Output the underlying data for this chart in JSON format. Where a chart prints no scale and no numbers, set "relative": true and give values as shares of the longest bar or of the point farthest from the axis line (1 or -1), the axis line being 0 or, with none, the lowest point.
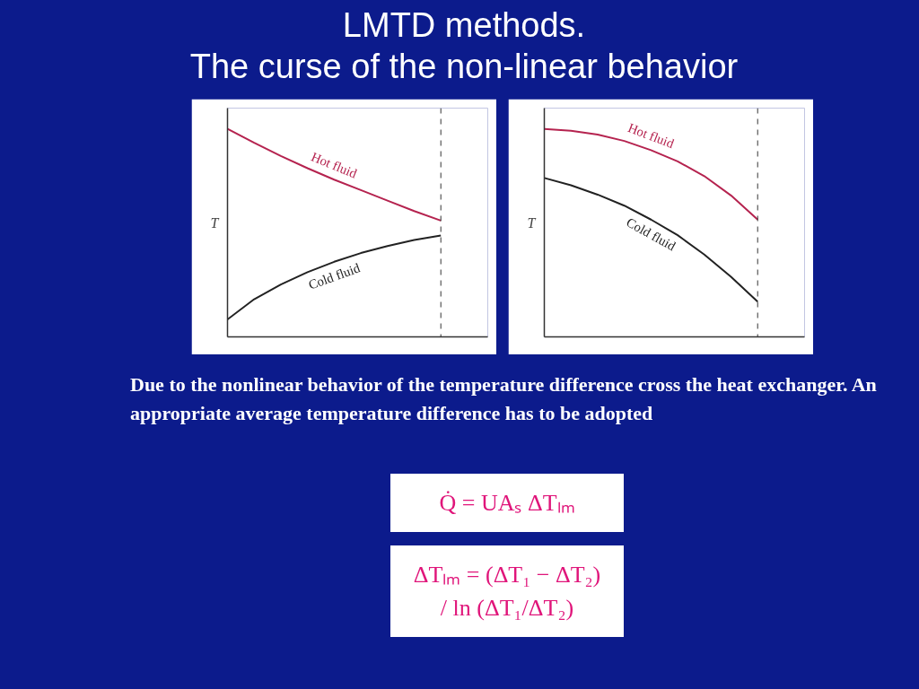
{
  "chart_data": [
    {
      "type": "line",
      "title": "LMTD methods.\nThe curse of the non-linear behavior",
      "ylabel": "T",
      "relative": true,
      "tick_labels": false,
      "grid": false,
      "legend": false,
      "marker": "none",
      "line_style": "solid",
      "categories": [
        null,
        null,
        null,
        null,
        null,
        null,
        null,
        null,
        null
      ],
      "ref_lines": [
        {
          "axis": "x",
          "line_style": "dashed",
          "color": "#333333"
        }
      ],
      "series": [
        {
          "name": "Hot fluid",
          "color": "#b5234f",
          "values": [
            1,
            0.933,
            0.87,
            0.811,
            0.756,
            0.706,
            0.655,
            0.605,
            0.559
          ]
        },
        {
          "name": "Cold fluid",
          "color": "#222222",
          "values": [
            0.084,
            0.181,
            0.252,
            0.311,
            0.361,
            0.403,
            0.437,
            0.466,
            0.487
          ]
        }
      ],
      "annotations": [
        "Due to the nonlinear behavior of the temperature difference cross the heat exchanger. An appropriate average temperature difference has to be adopted",
        "Q̇ = UAₛ ΔTₗₘ",
        "ΔTₗₘ = (ΔT₁ − ΔT₂) / ln (ΔT₁/ΔT₂)"
      ]
    },
    {
      "type": "line",
      "ylabel": "T",
      "relative": true,
      "tick_labels": false,
      "grid": false,
      "legend": false,
      "marker": "none",
      "line_style": "solid",
      "categories": [
        null,
        null,
        null,
        null,
        null,
        null,
        null,
        null,
        null
      ],
      "ref_lines": [
        {
          "axis": "x",
          "line_style": "dashed",
          "color": "#333333"
        }
      ],
      "series": [
        {
          "name": "Hot fluid",
          "color": "#b5234f",
          "values": [
            1,
            0.991,
            0.973,
            0.942,
            0.898,
            0.844,
            0.773,
            0.68,
            0.564
          ]
        },
        {
          "name": "Cold fluid",
          "color": "#222222",
          "values": [
            0.764,
            0.729,
            0.684,
            0.631,
            0.564,
            0.489,
            0.396,
            0.289,
            0.169
          ]
        }
      ]
    }
  ]
}
